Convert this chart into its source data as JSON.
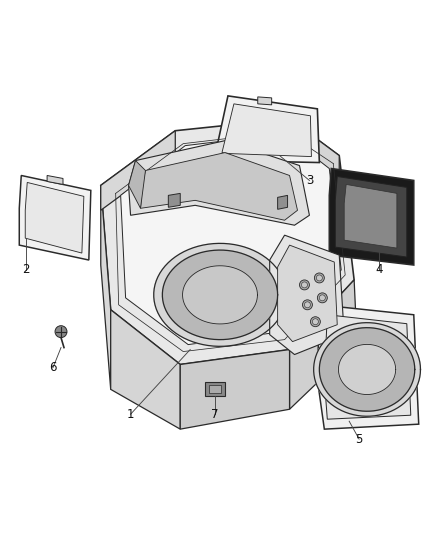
{
  "background_color": "#ffffff",
  "figure_width": 4.38,
  "figure_height": 5.33,
  "dpi": 100,
  "line_color": "#2a2a2a",
  "line_width": 0.9,
  "label_fontsize": 8.5,
  "label_color": "#111111",
  "fill_outer": "#f0f0f0",
  "fill_inner": "#e8e8e8",
  "fill_deep": "#d0d0d0",
  "fill_dark": "#b0b0b0",
  "fill_white": "#ffffff"
}
